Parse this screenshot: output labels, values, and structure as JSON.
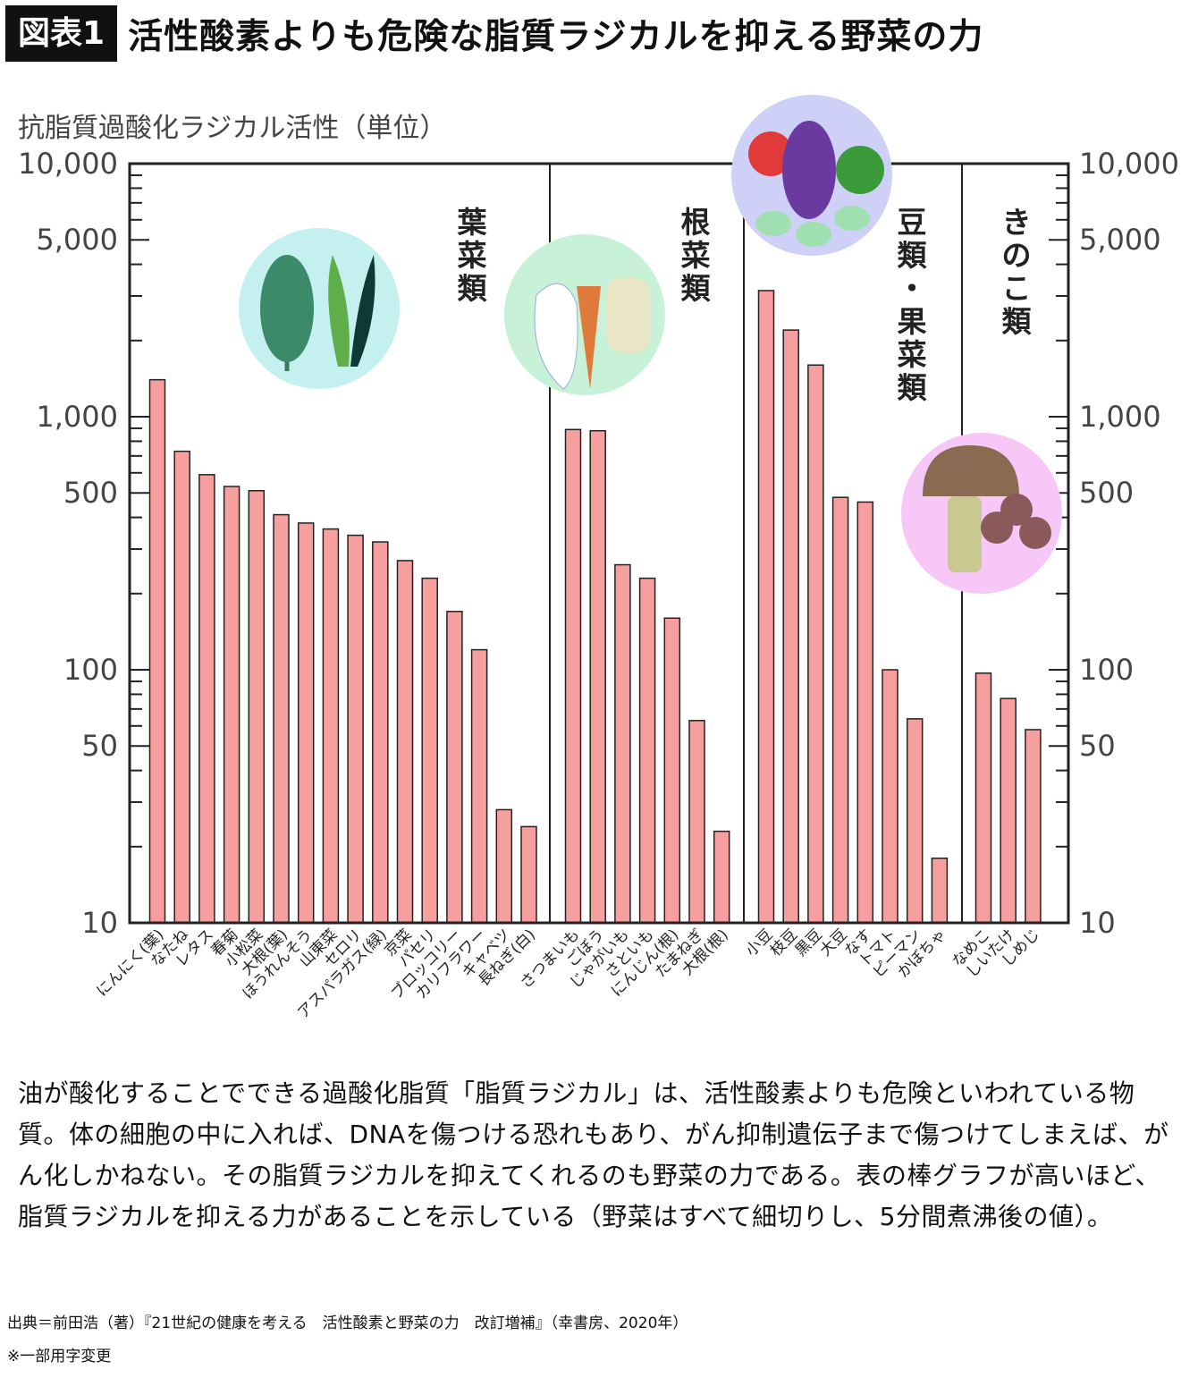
{
  "header": {
    "badge": "図表1",
    "title": "活性酸素よりも危険な脂質ラジカルを抑える野菜の力"
  },
  "chart_data": {
    "type": "bar",
    "ylabel": "抗脂質過酸化ラジカル活性（単位）",
    "yscale": "log",
    "ylim": [
      10,
      10000
    ],
    "yticks": [
      10,
      50,
      100,
      500,
      1000,
      5000,
      10000
    ],
    "ytick_labels": [
      "10",
      "50",
      "100",
      "500",
      "1,000",
      "5,000",
      "10,000"
    ],
    "bar_color": "#f79e9e",
    "groups": [
      {
        "name": "葉菜類",
        "circle_color": "#c4f0f0",
        "categories": [
          "にんにく(葉)",
          "なたね",
          "レタス",
          "春菊",
          "小松菜",
          "大根(葉)",
          "ほうれんそう",
          "山東菜",
          "セロリ",
          "アスパラガス(緑)",
          "京菜",
          "パセリ",
          "ブロッコリー",
          "カリフラワー",
          "キャベツ",
          "長ねぎ(白)"
        ],
        "values": [
          1400,
          730,
          590,
          530,
          510,
          410,
          380,
          360,
          340,
          320,
          270,
          230,
          170,
          120,
          28,
          24
        ]
      },
      {
        "name": "根菜類",
        "circle_color": "#c8f2d8",
        "categories": [
          "さつまいも",
          "ごぼう",
          "じゃがいも",
          "さといも",
          "にんじん(根)",
          "たまねぎ",
          "大根(根)"
        ],
        "values": [
          890,
          880,
          260,
          230,
          160,
          63,
          23
        ]
      },
      {
        "name": "豆類・果菜類",
        "circle_color": "#cfd0f7",
        "categories": [
          "小豆",
          "枝豆",
          "黒豆",
          "大豆",
          "なす",
          "トマト",
          "ピーマン",
          "かぼちゃ"
        ],
        "values": [
          3150,
          2200,
          1600,
          480,
          460,
          100,
          64,
          18
        ]
      },
      {
        "name": "きのこ類",
        "circle_color": "#f7c8f7",
        "categories": [
          "なめこ",
          "しいたけ",
          "しめじ"
        ],
        "values": [
          97,
          77,
          58
        ]
      }
    ]
  },
  "body_text": "油が酸化することでできる過酸化脂質「脂質ラジカル」は、活性酸素よりも危険といわれている物質。体の細胞の中に入れば、DNAを傷つける恐れもあり、がん抑制遺伝子まで傷つけてしまえば、がん化しかねない。その脂質ラジカルを抑えてくれるのも野菜の力である。表の棒グラフが高いほど、脂質ラジカルを抑える力があることを示している（野菜はすべて細切りし、5分間煮沸後の値）。",
  "source": "出典＝前田浩（著）『21世紀の健康を考える　活性酸素と野菜の力　改訂増補』（幸書房、2020年）",
  "note": "※一部用字変更"
}
